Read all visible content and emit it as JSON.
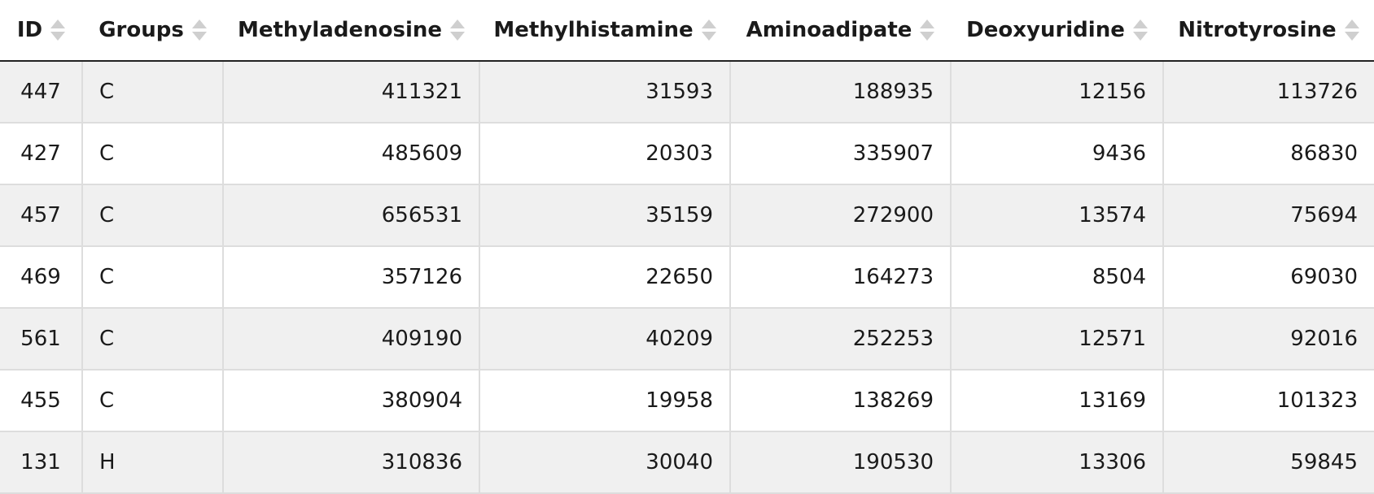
{
  "columns": [
    "ID",
    "Groups",
    "Methyladenosine",
    "Methylhistamine",
    "Aminoadipate",
    "Deoxyuridine",
    "Nitrotyrosine"
  ],
  "rows": [
    [
      "447",
      "C",
      "411321",
      "31593",
      "188935",
      "12156",
      "113726"
    ],
    [
      "427",
      "C",
      "485609",
      "20303",
      "335907",
      "9436",
      "86830"
    ],
    [
      "457",
      "C",
      "656531",
      "35159",
      "272900",
      "13574",
      "75694"
    ],
    [
      "469",
      "C",
      "357126",
      "22650",
      "164273",
      "8504",
      "69030"
    ],
    [
      "561",
      "C",
      "409190",
      "40209",
      "252253",
      "12571",
      "92016"
    ],
    [
      "455",
      "C",
      "380904",
      "19958",
      "138269",
      "13169",
      "101323"
    ],
    [
      "131",
      "H",
      "310836",
      "30040",
      "190530",
      "13306",
      "59845"
    ]
  ],
  "icons": {
    "sort": "sort-icon"
  },
  "colors": {
    "row_alt": "#f0f0f0",
    "border": "#dddddd",
    "header_rule": "#222222"
  }
}
